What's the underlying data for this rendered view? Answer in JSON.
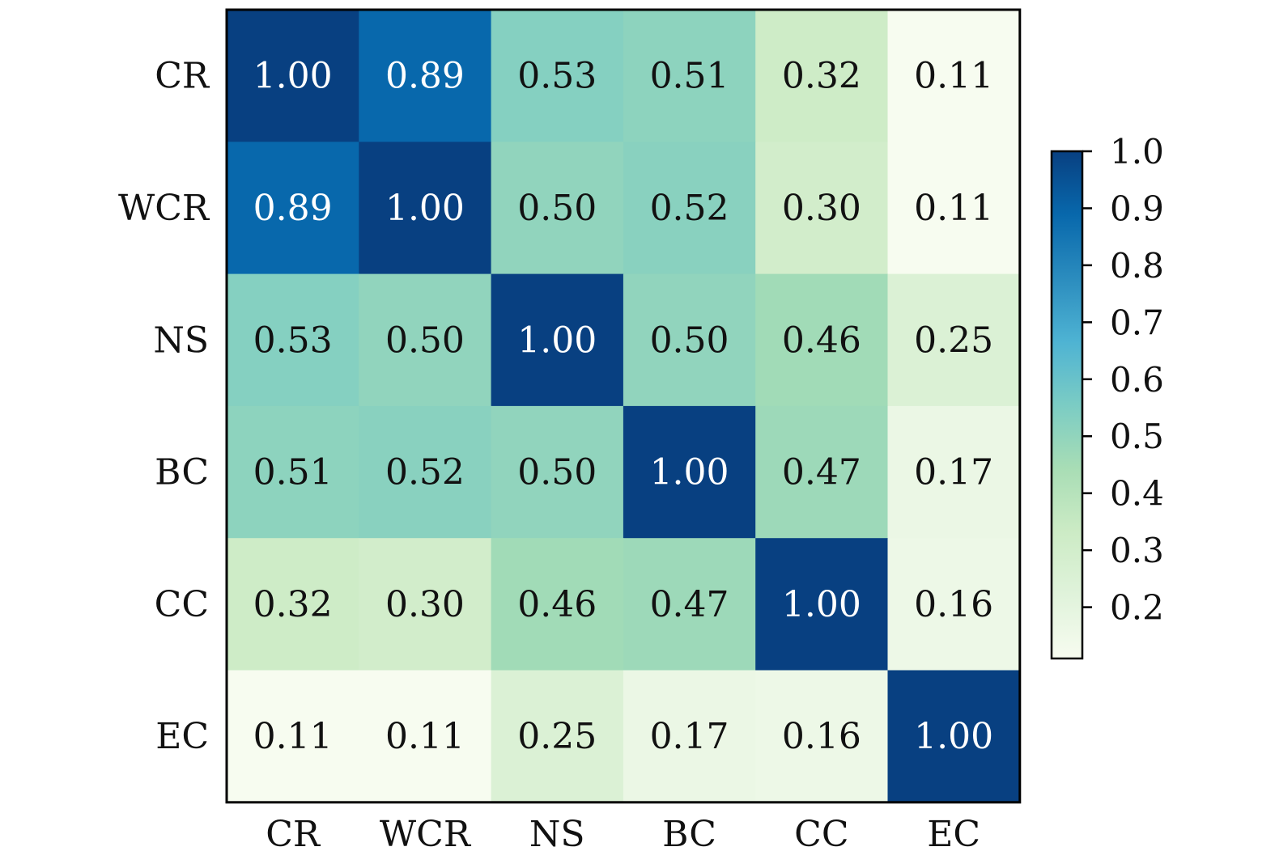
{
  "chart_data": {
    "type": "heatmap",
    "title": "",
    "xlabel": "",
    "ylabel": "",
    "x_categories": [
      "CR",
      "WCR",
      "NS",
      "BC",
      "CC",
      "EC"
    ],
    "y_categories": [
      "CR",
      "WCR",
      "NS",
      "BC",
      "CC",
      "EC"
    ],
    "values": [
      [
        1.0,
        0.89,
        0.53,
        0.51,
        0.32,
        0.11
      ],
      [
        0.89,
        1.0,
        0.5,
        0.52,
        0.3,
        0.11
      ],
      [
        0.53,
        0.5,
        1.0,
        0.5,
        0.46,
        0.25
      ],
      [
        0.51,
        0.52,
        0.5,
        1.0,
        0.47,
        0.17
      ],
      [
        0.32,
        0.3,
        0.46,
        0.47,
        1.0,
        0.16
      ],
      [
        0.11,
        0.11,
        0.25,
        0.17,
        0.16,
        1.0
      ]
    ],
    "value_format": "0.00",
    "colormap": "GnBu",
    "colormap_stops": [
      "#f7fcf0",
      "#e0f3db",
      "#ccebc5",
      "#a8ddb5",
      "#7bccc4",
      "#4eb3d3",
      "#2b8cbe",
      "#0868ac",
      "#084081"
    ],
    "color_range": [
      0.11,
      1.0
    ],
    "colorbar": {
      "ticks": [
        0.2,
        0.3,
        0.4,
        0.5,
        0.6,
        0.7,
        0.8,
        0.9,
        1.0
      ],
      "tick_labels": [
        "0.2",
        "0.3",
        "0.4",
        "0.5",
        "0.6",
        "0.7",
        "0.8",
        "0.9",
        "1.0"
      ],
      "placement": "right"
    },
    "annotation_colors": {
      "dark_cell_text": "#ffffff",
      "light_cell_text": "#111111"
    },
    "grid": false
  }
}
